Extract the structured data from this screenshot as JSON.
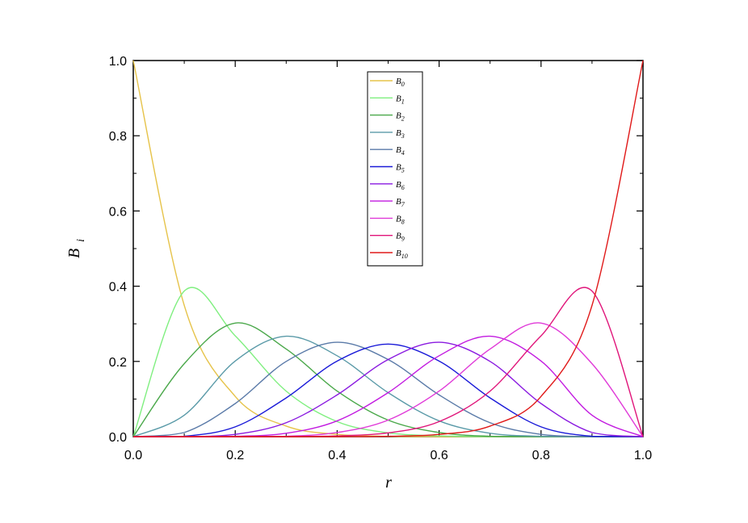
{
  "chart_data": {
    "type": "line",
    "title": "",
    "xlabel": "r",
    "ylabel": {
      "base": "B",
      "sub": "i"
    },
    "xlim": [
      0.0,
      1.0
    ],
    "ylim": [
      0.0,
      1.0
    ],
    "xticks": [
      "0.0",
      "0.2",
      "0.4",
      "0.6",
      "0.8",
      "1.0"
    ],
    "yticks": [
      "0.0",
      "0.2",
      "0.4",
      "0.6",
      "0.8",
      "1.0"
    ],
    "grid": false,
    "legend_position": "top-center",
    "x": [
      0.0,
      0.1,
      0.2,
      0.3,
      0.4,
      0.5,
      0.6,
      0.7,
      0.8,
      0.9,
      1.0
    ],
    "series": [
      {
        "name": "B",
        "sub": "0",
        "color": "#e6c34a",
        "values": [
          1.0,
          0.349,
          0.107,
          0.028,
          0.006,
          0.001,
          0.0,
          0.0,
          0.0,
          0.0,
          0.0
        ]
      },
      {
        "name": "B",
        "sub": "1",
        "color": "#7fef7f",
        "values": [
          0.0,
          0.387,
          0.268,
          0.121,
          0.04,
          0.01,
          0.002,
          0.0,
          0.0,
          0.0,
          0.0
        ]
      },
      {
        "name": "B",
        "sub": "2",
        "color": "#4aa84a",
        "values": [
          0.0,
          0.194,
          0.302,
          0.233,
          0.121,
          0.044,
          0.011,
          0.001,
          0.0,
          0.0,
          0.0
        ]
      },
      {
        "name": "B",
        "sub": "3",
        "color": "#5a9aa8",
        "values": [
          0.0,
          0.057,
          0.201,
          0.267,
          0.215,
          0.117,
          0.042,
          0.009,
          0.001,
          0.0,
          0.0
        ]
      },
      {
        "name": "B",
        "sub": "4",
        "color": "#5a7aa8",
        "values": [
          0.0,
          0.011,
          0.088,
          0.2,
          0.251,
          0.205,
          0.111,
          0.037,
          0.006,
          0.0,
          0.0
        ]
      },
      {
        "name": "B",
        "sub": "5",
        "color": "#1a1ad8",
        "values": [
          0.0,
          0.001,
          0.026,
          0.103,
          0.201,
          0.246,
          0.201,
          0.103,
          0.026,
          0.001,
          0.0
        ]
      },
      {
        "name": "B",
        "sub": "6",
        "color": "#8a1ae0",
        "values": [
          0.0,
          0.0,
          0.006,
          0.037,
          0.111,
          0.205,
          0.251,
          0.2,
          0.088,
          0.011,
          0.0
        ]
      },
      {
        "name": "B",
        "sub": "7",
        "color": "#c21ae0",
        "values": [
          0.0,
          0.0,
          0.001,
          0.009,
          0.042,
          0.117,
          0.215,
          0.267,
          0.201,
          0.057,
          0.0
        ]
      },
      {
        "name": "B",
        "sub": "8",
        "color": "#e03ad8",
        "values": [
          0.0,
          0.0,
          0.0,
          0.001,
          0.011,
          0.044,
          0.121,
          0.233,
          0.302,
          0.194,
          0.0
        ]
      },
      {
        "name": "B",
        "sub": "9",
        "color": "#e0157a",
        "values": [
          0.0,
          0.0,
          0.0,
          0.0,
          0.002,
          0.01,
          0.04,
          0.121,
          0.268,
          0.387,
          0.0
        ]
      },
      {
        "name": "B",
        "sub": "10",
        "color": "#e01a1a",
        "values": [
          0.0,
          0.0,
          0.0,
          0.0,
          0.0,
          0.001,
          0.006,
          0.028,
          0.107,
          0.349,
          1.0
        ]
      }
    ]
  }
}
